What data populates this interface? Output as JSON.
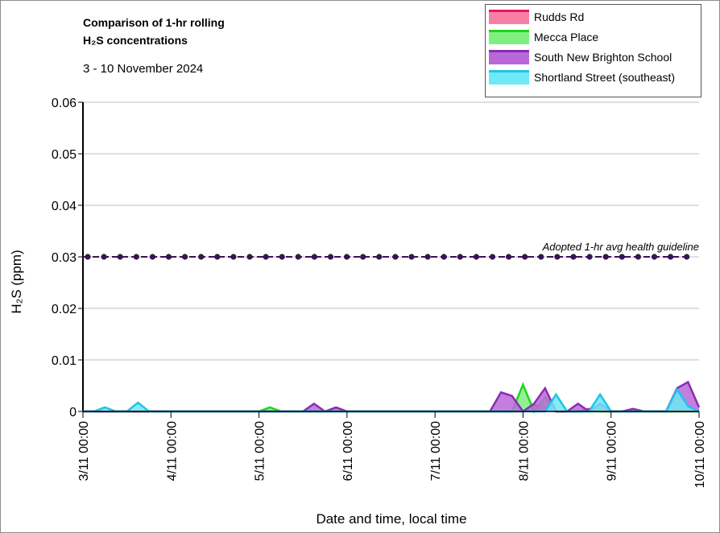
{
  "chart_data": {
    "type": "area",
    "title": [
      "Comparison of 1-hr rolling",
      "H₂S concentrations"
    ],
    "subtitle": "3 - 10 November 2024",
    "x_label": "Date and time, local time",
    "y_label": "H₂S (ppm)",
    "x": [
      0,
      3,
      6,
      9,
      12,
      15,
      18,
      21,
      24,
      27,
      30,
      33,
      36,
      39,
      42,
      45,
      48,
      51,
      54,
      57,
      60,
      63,
      66,
      69,
      72,
      75,
      78,
      81,
      84,
      87,
      90,
      93,
      96,
      99,
      102,
      105,
      108,
      111,
      114,
      117,
      120,
      123,
      126,
      129,
      132,
      135,
      138,
      141,
      144,
      147,
      150,
      153,
      156,
      159,
      162,
      165,
      168
    ],
    "xlim": [
      0,
      168
    ],
    "xticks": [
      {
        "value": 0,
        "label": "3/11 00:00"
      },
      {
        "value": 24,
        "label": "4/11 00:00"
      },
      {
        "value": 48,
        "label": "5/11 00:00"
      },
      {
        "value": 72,
        "label": "6/11 00:00"
      },
      {
        "value": 96,
        "label": "7/11 00:00"
      },
      {
        "value": 120,
        "label": "8/11 00:00"
      },
      {
        "value": 144,
        "label": "9/11 00:00"
      },
      {
        "value": 168,
        "label": "10/11 00:00"
      }
    ],
    "ylim": [
      0,
      0.06
    ],
    "yticks": [
      0,
      0.01,
      0.02,
      0.03,
      0.04,
      0.05,
      0.06
    ],
    "grid": true,
    "legend": "top-right",
    "guideline": {
      "value": 0.03,
      "label": "Adopted 1-hr avg health guideline",
      "color": "#3a1450"
    },
    "series": [
      {
        "name": "Rudds Rd",
        "color": "#e8156a",
        "fill": "#f77fa6",
        "values": [
          0,
          0,
          0,
          0,
          0,
          0,
          0,
          0,
          0,
          0,
          0,
          0,
          0,
          0,
          0,
          0,
          0,
          0,
          0,
          0,
          0,
          0,
          0,
          0,
          0,
          0,
          0,
          0,
          0,
          0,
          0,
          0,
          0,
          0,
          0,
          0,
          0,
          0,
          0,
          0,
          0,
          0.0012,
          0.0008,
          0,
          0,
          0,
          0.0005,
          0,
          0,
          0,
          0,
          0,
          0,
          0,
          0,
          0,
          0
        ]
      },
      {
        "name": "Mecca Place",
        "color": "#1ed41e",
        "fill": "#7ff07f",
        "values": [
          0,
          0,
          0,
          0,
          0,
          0,
          0,
          0,
          0,
          0,
          0,
          0,
          0,
          0,
          0,
          0,
          0,
          0.0008,
          0,
          0,
          0,
          0,
          0,
          0,
          0,
          0,
          0,
          0,
          0,
          0,
          0,
          0,
          0,
          0,
          0,
          0,
          0,
          0,
          0,
          0,
          0.0052,
          0,
          0.0027,
          0,
          0,
          0,
          0,
          0,
          0,
          0,
          0,
          0,
          0,
          0,
          0,
          0,
          0
        ]
      },
      {
        "name": "South New Brighton School",
        "color": "#8a2cb3",
        "fill": "#b869d9",
        "values": [
          0,
          0,
          0,
          0,
          0,
          0,
          0,
          0,
          0,
          0,
          0,
          0,
          0,
          0,
          0,
          0,
          0,
          0,
          0,
          0,
          0,
          0.0015,
          0,
          0.0008,
          0,
          0,
          0,
          0,
          0,
          0,
          0,
          0,
          0,
          0,
          0,
          0,
          0,
          0,
          0.0037,
          0.003,
          0,
          0.0015,
          0.0045,
          0,
          0,
          0.0015,
          0,
          0.0015,
          0,
          0,
          0.0005,
          0,
          0,
          0,
          0.0045,
          0.0057,
          0.0008
        ]
      },
      {
        "name": "Shortland Street (southeast)",
        "color": "#1fc3e8",
        "fill": "#6fe8f7",
        "values": [
          0,
          0,
          0.0008,
          0,
          0,
          0.0017,
          0,
          0,
          0,
          0,
          0,
          0,
          0,
          0,
          0,
          0,
          0,
          0,
          0,
          0,
          0,
          0,
          0,
          0,
          0,
          0,
          0,
          0,
          0,
          0,
          0,
          0,
          0,
          0,
          0,
          0,
          0,
          0,
          0,
          0,
          0,
          0,
          0,
          0.0033,
          0,
          0,
          0,
          0.0033,
          0,
          0,
          0,
          0,
          0,
          0,
          0.0043,
          0.001,
          0
        ]
      }
    ]
  }
}
